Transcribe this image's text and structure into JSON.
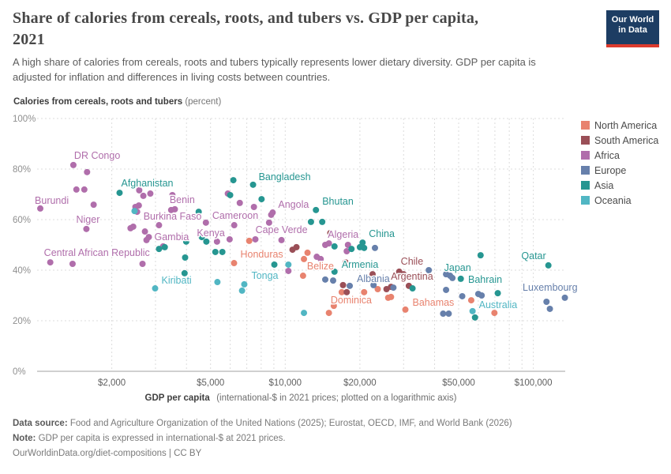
{
  "header": {
    "title_line1": "Share of calories from cereals, roots, and tubers vs. GDP per capita,",
    "title_line2": "2021",
    "subtitle_line1": "A high share of calories from cereals, roots and tubers typically represents lower dietary diversity. GDP per capita is",
    "subtitle_line2": "adjusted for inflation and differences in living costs between countries.",
    "logo_line1": "Our World",
    "logo_line2": "in Data"
  },
  "chart_data": {
    "type": "scatter",
    "title": "Share of calories from cereals, roots, and tubers vs. GDP per capita, 2021",
    "y_axis": {
      "title_bold": "Calories from cereals, roots and tubers",
      "title_light": "(percent)",
      "ticks": [
        0,
        20,
        40,
        60,
        80,
        100
      ],
      "tick_labels": [
        "0%",
        "20%",
        "40%",
        "60%",
        "80%",
        "100%"
      ],
      "range": [
        0,
        100
      ],
      "grid": true
    },
    "x_axis": {
      "title_bold": "GDP per capita",
      "title_light": "(international-$ in 2021 prices; plotted on a logarithmic axis)",
      "scale": "log",
      "major_ticks": [
        2000,
        5000,
        10000,
        20000,
        50000,
        100000
      ],
      "tick_labels": [
        "$2,000",
        "$5,000",
        "$10,000",
        "$20,000",
        "$50,000",
        "$100,000"
      ],
      "minor_gridlines": [
        2000,
        3000,
        4000,
        5000,
        6000,
        7000,
        8000,
        9000,
        10000,
        20000,
        30000,
        40000,
        50000,
        60000,
        70000,
        80000,
        90000,
        100000
      ],
      "range": [
        1000,
        140000
      ],
      "grid": true
    },
    "legend_position": "right",
    "legend": [
      {
        "name": "North America",
        "color": "#e8836f"
      },
      {
        "name": "South America",
        "color": "#9a4f57"
      },
      {
        "name": "Africa",
        "color": "#b06eab"
      },
      {
        "name": "Europe",
        "color": "#6780ab"
      },
      {
        "name": "Asia",
        "color": "#269691"
      },
      {
        "name": "Oceania",
        "color": "#51b6c3"
      }
    ],
    "series": [
      {
        "name": "North America",
        "color": "#e8836f",
        "points": [
          {
            "gdp": 7160,
            "share": 51.6
          },
          {
            "gdp": 6220,
            "share": 42.8,
            "label": "Honduras",
            "anchor": "start",
            "dx": 8,
            "dy": -7
          },
          {
            "gdp": 11900,
            "share": 44.4
          },
          {
            "gdp": 12300,
            "share": 46.9
          },
          {
            "gdp": 11800,
            "share": 37.8,
            "label": "Belize",
            "anchor": "start",
            "dx": 5,
            "dy": -8
          },
          {
            "gdp": 16900,
            "share": 31.3,
            "label": "Dominica",
            "anchor": "middle",
            "dx": 12,
            "dy": 14
          },
          {
            "gdp": 20800,
            "share": 31.3
          },
          {
            "gdp": 23600,
            "share": 32.5
          },
          {
            "gdp": 15700,
            "share": 25.9
          },
          {
            "gdp": 15000,
            "share": 23.1
          },
          {
            "gdp": 26000,
            "share": 29.1
          },
          {
            "gdp": 26700,
            "share": 29.4
          },
          {
            "gdp": 30500,
            "share": 24.4,
            "label": "Bahamas",
            "anchor": "start",
            "dx": 9,
            "dy": -5
          },
          {
            "gdp": 56200,
            "share": 28.1
          },
          {
            "gdp": 69700,
            "share": 23.1
          }
        ]
      },
      {
        "name": "South America",
        "color": "#9a4f57",
        "points": [
          {
            "gdp": 10700,
            "share": 48.1
          },
          {
            "gdp": 11100,
            "share": 49.1
          },
          {
            "gdp": 15200,
            "share": 54.7
          },
          {
            "gdp": 17500,
            "share": 43.1
          },
          {
            "gdp": 22500,
            "share": 38.4
          },
          {
            "gdp": 17100,
            "share": 34.1
          },
          {
            "gdp": 17700,
            "share": 31.3
          },
          {
            "gdp": 28800,
            "share": 39.4,
            "label": "Chile",
            "anchor": "start",
            "dx": 2,
            "dy": -9
          },
          {
            "gdp": 30000,
            "share": 38.4
          },
          {
            "gdp": 31500,
            "share": 33.8,
            "label": "Argentina",
            "anchor": "middle",
            "dx": 4,
            "dy": -8
          },
          {
            "gdp": 25600,
            "share": 32.5
          },
          {
            "gdp": 26700,
            "share": 33.4
          }
        ]
      },
      {
        "name": "Africa",
        "color": "#b06eab",
        "points": [
          {
            "gdp": 1400,
            "share": 81.6,
            "label": "DR Congo",
            "anchor": "start",
            "dx": 1,
            "dy": -8
          },
          {
            "gdp": 1590,
            "share": 78.8
          },
          {
            "gdp": 1440,
            "share": 71.9
          },
          {
            "gdp": 1550,
            "share": 71.9
          },
          {
            "gdp": 1030,
            "share": 64.4,
            "label": "Burundi",
            "anchor": "start",
            "dx": -7,
            "dy": -6
          },
          {
            "gdp": 1690,
            "share": 65.9
          },
          {
            "gdp": 1580,
            "share": 56.3,
            "label": "Niger",
            "anchor": "middle",
            "dx": 2,
            "dy": -8
          },
          {
            "gdp": 2580,
            "share": 71.6
          },
          {
            "gdp": 2680,
            "share": 69.4
          },
          {
            "gdp": 2860,
            "share": 70.3
          },
          {
            "gdp": 3510,
            "share": 69.7
          },
          {
            "gdp": 2570,
            "share": 65.6
          },
          {
            "gdp": 2490,
            "share": 65.0
          },
          {
            "gdp": 3470,
            "share": 63.8,
            "label": "Benin",
            "anchor": "start",
            "dx": -2,
            "dy": -9
          },
          {
            "gdp": 3590,
            "share": 64.1
          },
          {
            "gdp": 2530,
            "share": 63.1,
            "label": "Burkina Faso",
            "anchor": "start",
            "dx": 8,
            "dy": 10
          },
          {
            "gdp": 2440,
            "share": 57.2
          },
          {
            "gdp": 2380,
            "share": 56.6
          },
          {
            "gdp": 2720,
            "share": 55.3
          },
          {
            "gdp": 2820,
            "share": 53.1,
            "label": "Gambia",
            "anchor": "start",
            "dx": 7,
            "dy": 4
          },
          {
            "gdp": 2760,
            "share": 51.9
          },
          {
            "gdp": 3100,
            "share": 57.8
          },
          {
            "gdp": 3220,
            "share": 49.4
          },
          {
            "gdp": 4790,
            "share": 58.8,
            "label": "Cameroon",
            "anchor": "start",
            "dx": 8,
            "dy": -5
          },
          {
            "gdp": 5310,
            "share": 51.3
          },
          {
            "gdp": 5970,
            "share": 52.2,
            "label": "Kenya",
            "anchor": "end",
            "dx": -6,
            "dy": -4
          },
          {
            "gdp": 1130,
            "share": 43.1,
            "label": "Central African Republic",
            "anchor": "start",
            "dx": -8,
            "dy": -8
          },
          {
            "gdp": 1390,
            "share": 42.5
          },
          {
            "gdp": 2660,
            "share": 42.5
          },
          {
            "gdp": 5870,
            "share": 70.3
          },
          {
            "gdp": 6560,
            "share": 66.6
          },
          {
            "gdp": 7480,
            "share": 65.0
          },
          {
            "gdp": 8780,
            "share": 61.9
          },
          {
            "gdp": 8900,
            "share": 62.8,
            "label": "Angola",
            "anchor": "start",
            "dx": 7,
            "dy": -6
          },
          {
            "gdp": 8610,
            "share": 58.8
          },
          {
            "gdp": 6230,
            "share": 57.8
          },
          {
            "gdp": 9660,
            "share": 51.9,
            "label": "Cape Verde",
            "anchor": "middle",
            "dx": 0,
            "dy": -9
          },
          {
            "gdp": 7580,
            "share": 52.2
          },
          {
            "gdp": 10300,
            "share": 39.7
          },
          {
            "gdp": 13400,
            "share": 45.3
          },
          {
            "gdp": 13900,
            "share": 44.4
          },
          {
            "gdp": 17900,
            "share": 50.0,
            "label": "Algeria",
            "anchor": "middle",
            "dx": -6,
            "dy": -9
          },
          {
            "gdp": 14500,
            "share": 50.0
          },
          {
            "gdp": 15000,
            "share": 50.6
          },
          {
            "gdp": 17700,
            "share": 47.5
          },
          {
            "gdp": 22800,
            "share": 41.9
          }
        ]
      },
      {
        "name": "Europe",
        "color": "#6780ab",
        "points": [
          {
            "gdp": 23000,
            "share": 48.8
          },
          {
            "gdp": 18200,
            "share": 33.8,
            "label": "Albania",
            "anchor": "start",
            "dx": 9,
            "dy": -5
          },
          {
            "gdp": 14500,
            "share": 36.3
          },
          {
            "gdp": 15600,
            "share": 35.9
          },
          {
            "gdp": 22700,
            "share": 34.1
          },
          {
            "gdp": 27300,
            "share": 33.1
          },
          {
            "gdp": 37900,
            "share": 40.0
          },
          {
            "gdp": 44500,
            "share": 38.4
          },
          {
            "gdp": 46200,
            "share": 37.8
          },
          {
            "gdp": 47200,
            "share": 36.9
          },
          {
            "gdp": 44500,
            "share": 32.2
          },
          {
            "gdp": 51700,
            "share": 29.7
          },
          {
            "gdp": 60000,
            "share": 30.6
          },
          {
            "gdp": 61900,
            "share": 30.0
          },
          {
            "gdp": 43300,
            "share": 22.8
          },
          {
            "gdp": 45600,
            "share": 22.8
          },
          {
            "gdp": 113000,
            "share": 27.5
          },
          {
            "gdp": 116600,
            "share": 24.7
          },
          {
            "gdp": 134000,
            "share": 29.1,
            "label": "Luxembourg",
            "anchor": "end",
            "dx": 16,
            "dy": -9
          }
        ]
      },
      {
        "name": "Asia",
        "color": "#269691",
        "points": [
          {
            "gdp": 2150,
            "share": 70.6,
            "label": "Afghanistan",
            "anchor": "start",
            "dx": 2,
            "dy": -8
          },
          {
            "gdp": 6180,
            "share": 75.6
          },
          {
            "gdp": 7420,
            "share": 73.8,
            "label": "Bangladesh",
            "anchor": "start",
            "dx": 7,
            "dy": -6
          },
          {
            "gdp": 6000,
            "share": 69.7
          },
          {
            "gdp": 8030,
            "share": 68.1
          },
          {
            "gdp": 4480,
            "share": 63.1
          },
          {
            "gdp": 13300,
            "share": 63.8,
            "label": "Bhutan",
            "anchor": "start",
            "dx": 8,
            "dy": -7
          },
          {
            "gdp": 12700,
            "share": 59.1
          },
          {
            "gdp": 14100,
            "share": 59.1
          },
          {
            "gdp": 4610,
            "share": 53.1
          },
          {
            "gdp": 4810,
            "share": 51.3
          },
          {
            "gdp": 3990,
            "share": 51.3
          },
          {
            "gdp": 3100,
            "share": 48.4
          },
          {
            "gdp": 3270,
            "share": 49.1
          },
          {
            "gdp": 5230,
            "share": 47.2
          },
          {
            "gdp": 5580,
            "share": 47.2
          },
          {
            "gdp": 3950,
            "share": 45.0
          },
          {
            "gdp": 3930,
            "share": 38.8
          },
          {
            "gdp": 9040,
            "share": 42.2
          },
          {
            "gdp": 20500,
            "share": 50.9,
            "label": "China",
            "anchor": "start",
            "dx": 8,
            "dy": -7
          },
          {
            "gdp": 20800,
            "share": 48.8
          },
          {
            "gdp": 18500,
            "share": 48.4
          },
          {
            "gdp": 20000,
            "share": 49.1
          },
          {
            "gdp": 15800,
            "share": 49.4
          },
          {
            "gdp": 15800,
            "share": 39.4,
            "label": "Armenia",
            "anchor": "start",
            "dx": 9,
            "dy": -5
          },
          {
            "gdp": 61300,
            "share": 45.9
          },
          {
            "gdp": 115000,
            "share": 41.9,
            "label": "Qatar",
            "anchor": "end",
            "dx": -3,
            "dy": -8
          },
          {
            "gdp": 51000,
            "share": 36.6,
            "label": "Japan",
            "anchor": "middle",
            "dx": -4,
            "dy": -10
          },
          {
            "gdp": 71900,
            "share": 30.9,
            "label": "Bahrain",
            "anchor": "middle",
            "dx": -16,
            "dy": -13
          },
          {
            "gdp": 32600,
            "share": 32.8
          },
          {
            "gdp": 58200,
            "share": 21.3
          }
        ]
      },
      {
        "name": "Oceania",
        "color": "#51b6c3",
        "points": [
          {
            "gdp": 2470,
            "share": 63.4
          },
          {
            "gdp": 2990,
            "share": 32.8,
            "label": "Kiribati",
            "anchor": "start",
            "dx": 8,
            "dy": -6
          },
          {
            "gdp": 5330,
            "share": 35.3
          },
          {
            "gdp": 6840,
            "share": 34.4,
            "label": "Tonga",
            "anchor": "start",
            "dx": 9,
            "dy": -7
          },
          {
            "gdp": 6700,
            "share": 31.9
          },
          {
            "gdp": 10300,
            "share": 42.2
          },
          {
            "gdp": 11900,
            "share": 23.1
          },
          {
            "gdp": 56900,
            "share": 23.8,
            "label": "Australia",
            "anchor": "start",
            "dx": 8,
            "dy": -4
          }
        ]
      }
    ]
  },
  "footer": {
    "source_bold": "Data source:",
    "source_text": " Food and Agriculture Organization of the United Nations (2025); Eurostat, OECD, IMF, and World Bank (2026)",
    "note_bold": "Note:",
    "note_text": " GDP per capita is expressed in international-$ at 2021 prices.",
    "link": "OurWorldinData.org/diet-compositions | CC BY"
  }
}
